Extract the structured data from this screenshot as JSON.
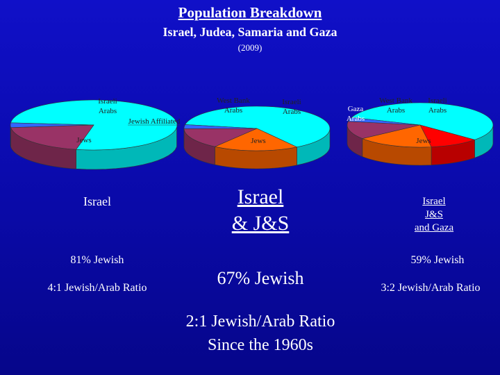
{
  "header": {
    "title": "Population Breakdown",
    "subtitle": "Israel, Judea, Samaria and Gaza",
    "year": "(2009)"
  },
  "colors": {
    "background": "#0a0aa8",
    "jews": "#00ffff",
    "israeli_arabs": "#993366",
    "west_bank_arabs": "#ff6600",
    "gaza_arabs": "#ff0000",
    "jewish_affiliated": "#3366ff"
  },
  "chart_data": [
    {
      "type": "pie",
      "title": "Israel",
      "slices": [
        {
          "label": "Jews",
          "value": 77,
          "color": "#00ffff"
        },
        {
          "label": "Israeli Arabs",
          "value": 20,
          "color": "#993366"
        },
        {
          "label": "Jewish Affiliated",
          "value": 3,
          "color": "#3366ff"
        }
      ]
    },
    {
      "type": "pie",
      "title": "Israel & J&S",
      "slices": [
        {
          "label": "Jews",
          "value": 63,
          "color": "#00ffff"
        },
        {
          "label": "West Bank Arabs",
          "value": 19,
          "color": "#ff6600"
        },
        {
          "label": "Israeli Arabs",
          "value": 15,
          "color": "#993366"
        },
        {
          "label": "",
          "value": 3,
          "color": "#3366ff"
        }
      ]
    },
    {
      "type": "pie",
      "title": "Israel J&S and Gaza",
      "slices": [
        {
          "label": "Jews",
          "value": 56,
          "color": "#00ffff"
        },
        {
          "label": "Gaza Arabs",
          "value": 11,
          "color": "#ff0000"
        },
        {
          "label": "West Bank Arabs",
          "value": 17,
          "color": "#ff6600"
        },
        {
          "label": "Israeli Arabs",
          "value": 13,
          "color": "#993366"
        },
        {
          "label": "",
          "value": 3,
          "color": "#3366ff"
        }
      ]
    }
  ],
  "charts": [
    {
      "name_line1": "Israel",
      "jewish_pct": "81% Jewish",
      "ratio": "4:1 Jewish/Arab Ratio"
    },
    {
      "name_line1": "Israel",
      "name_line2": "& J&S",
      "jewish_pct": "67% Jewish"
    },
    {
      "name_line1": "Israel",
      "name_line2": "J&S",
      "name_line3": "and Gaza",
      "jewish_pct": "59% Jewish",
      "ratio": "3:2 Jewish/Arab Ratio"
    }
  ],
  "summary": {
    "line1": "2:1 Jewish/Arab Ratio",
    "line2": "Since the 1960s"
  }
}
